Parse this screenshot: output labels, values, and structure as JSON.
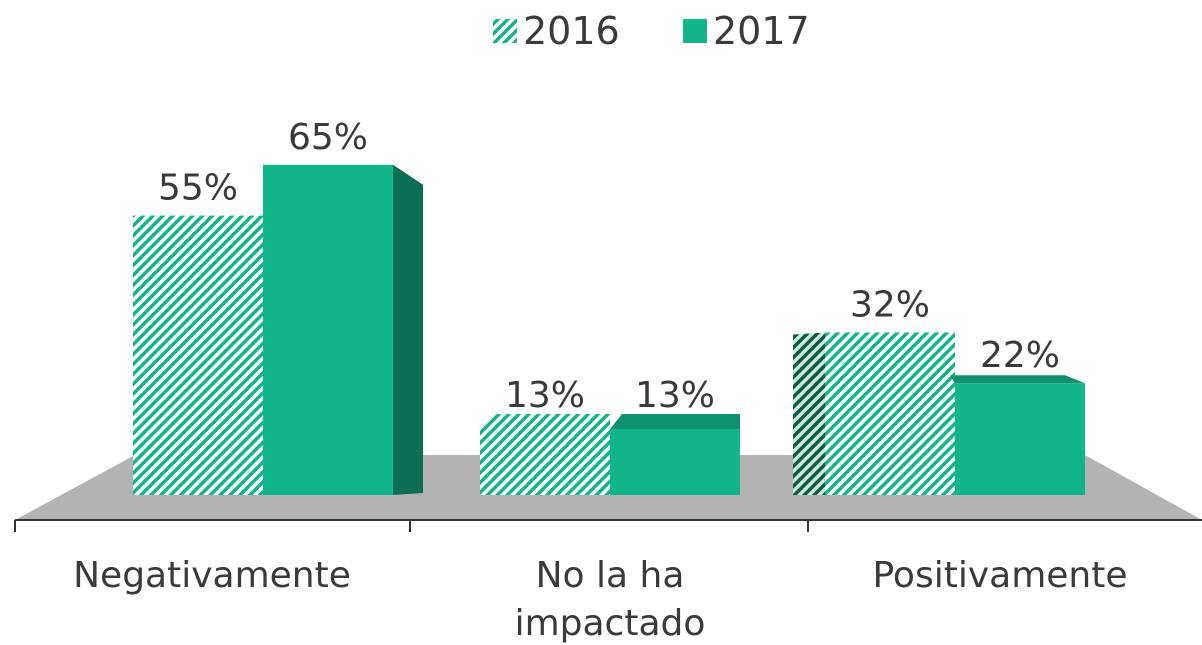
{
  "chart_data": {
    "type": "bar3d",
    "categories": [
      "Negativamente",
      "No la ha impactado",
      "Positivamente"
    ],
    "series": [
      {
        "name": "2016",
        "color": "#12b58a",
        "hatch": true,
        "values": [
          55,
          13,
          32
        ],
        "value_labels": [
          "55%",
          "13%",
          "32%"
        ]
      },
      {
        "name": "2017",
        "color": "#12b58a",
        "hatch": false,
        "values": [
          65,
          13,
          22
        ],
        "value_labels": [
          "65%",
          "13%",
          "22%"
        ]
      }
    ]
  }
}
